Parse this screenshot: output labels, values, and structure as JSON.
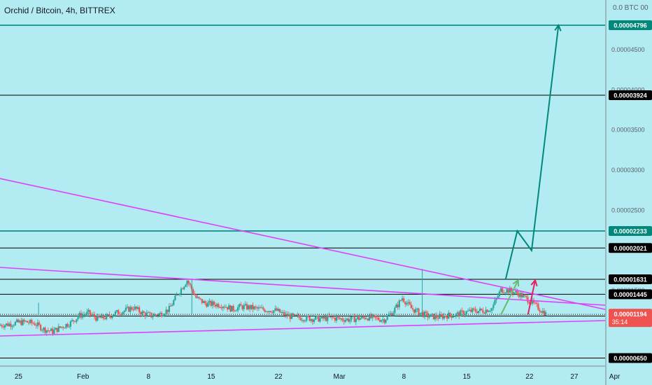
{
  "header": {
    "title": "Orchid / Bitcoin, 4h, BITTREX",
    "axis_header": "0.0 BTC 00"
  },
  "colors": {
    "background": "#b2ebf2",
    "up_candle": "#26a69a",
    "down_candle": "#ef5350",
    "teal_line": "#00897b",
    "magenta": "#e040fb",
    "green_arrow": "#66bb6a",
    "red_arrow": "#e91e63",
    "black_line": "#000000",
    "current_price_badge": "#ef5350"
  },
  "chart_data": {
    "type": "candlestick",
    "x_ticks": [
      "25",
      "Feb",
      "8",
      "15",
      "22",
      "Mar",
      "8",
      "15",
      "22",
      "27",
      "Apr"
    ],
    "y_ticks": [
      "0.00004500",
      "0.00004000",
      "0.00003500",
      "0.00003000",
      "0.00002500",
      "0.00001500"
    ],
    "ylim": [
      5.5e-06,
      5.11e-05
    ],
    "horizontal_levels": [
      {
        "value": 4.796e-05,
        "label": "0.00004796",
        "style": "teal"
      },
      {
        "value": 3.924e-05,
        "label": "0.00003924",
        "style": "black"
      },
      {
        "value": 2.233e-05,
        "label": "0.00002233",
        "style": "teal"
      },
      {
        "value": 2.021e-05,
        "label": "0.00002021",
        "style": "black"
      },
      {
        "value": 1.631e-05,
        "label": "0.00001631",
        "style": "black"
      },
      {
        "value": 1.445e-05,
        "label": "0.00001445",
        "style": "black"
      },
      {
        "value": 1.173e-05,
        "label": "0.00001173",
        "style": "black"
      },
      {
        "value": 6.5e-06,
        "label": "0.00000650",
        "style": "black"
      }
    ],
    "current_price": {
      "value": 1.194e-05,
      "label": "0.00001194",
      "countdown": "35:14"
    },
    "price_path_daily": [
      1.06e-05,
      1.07e-05,
      1.09e-05,
      1.1e-05,
      1.08e-05,
      1.01e-05,
      9.8e-06,
      1.04e-05,
      1.09e-05,
      1.18e-05,
      1.21e-05,
      1.14e-05,
      1.16e-05,
      1.21e-05,
      1.24e-05,
      1.28e-05,
      1.21e-05,
      1.18e-05,
      1.2e-05,
      1.26e-05,
      1.46e-05,
      1.62e-05,
      1.4e-05,
      1.33e-05,
      1.32e-05,
      1.31e-05,
      1.26e-05,
      1.29e-05,
      1.28e-05,
      1.26e-05,
      1.25e-05,
      1.24e-05,
      1.18e-05,
      1.16e-05,
      1.15e-05,
      1.14e-05,
      1.14e-05,
      1.15e-05,
      1.14e-05,
      1.13e-05,
      1.14e-05,
      1.16e-05,
      1.14e-05,
      1.13e-05,
      1.23e-05,
      1.4e-05,
      1.27e-05,
      1.21e-05,
      1.17e-05,
      1.16e-05,
      1.18e-05,
      1.19e-05,
      1.22e-05,
      1.24e-05,
      1.24e-05,
      1.27e-05,
      1.5e-05,
      1.49e-05,
      1.45e-05,
      1.38e-05,
      1.29e-05,
      1.2e-05
    ],
    "projection_teal": [
      {
        "t": 56.4,
        "v": 1.631e-05
      },
      {
        "t": 57.7,
        "v": 2.233e-05
      },
      {
        "t": 59.3,
        "v": 1.99e-05
      },
      {
        "t": 62.3,
        "v": 4.796e-05
      }
    ],
    "projection_green": [
      {
        "t": 55.9,
        "v": 1.194e-05
      },
      {
        "t": 57.8,
        "v": 1.62e-05
      }
    ],
    "projection_red": [
      {
        "t": 58.9,
        "v": 1.194e-05
      },
      {
        "t": 59.7,
        "v": 1.62e-05
      }
    ]
  }
}
